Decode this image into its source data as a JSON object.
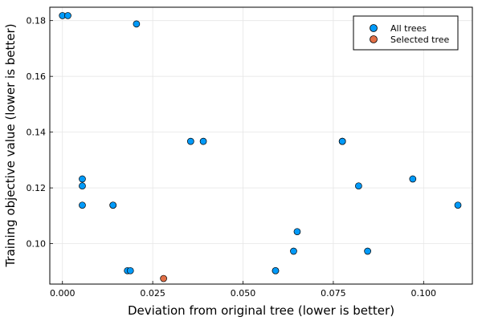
{
  "chart_data": {
    "type": "scatter",
    "title": "",
    "xlabel": "Deviation from original tree (lower is better)",
    "ylabel": "Training objective value (lower is better)",
    "xlim": [
      -0.0035,
      0.1135
    ],
    "ylim": [
      0.0855,
      0.1848
    ],
    "x_ticks": [
      0.0,
      0.025,
      0.05,
      0.075,
      0.1
    ],
    "x_tick_labels": [
      "0.000",
      "0.025",
      "0.050",
      "0.075",
      "0.100"
    ],
    "y_ticks": [
      0.1,
      0.12,
      0.14,
      0.16,
      0.18
    ],
    "y_tick_labels": [
      "0.10",
      "0.12",
      "0.14",
      "0.16",
      "0.18"
    ],
    "grid": true,
    "legend_position": "top-right",
    "series": [
      {
        "name": "All trees",
        "color": "#009AF9",
        "points": [
          [
            0.0,
            0.1818
          ],
          [
            0.0015,
            0.1818
          ],
          [
            0.0205,
            0.1788
          ],
          [
            0.0355,
            0.1367
          ],
          [
            0.039,
            0.1367
          ],
          [
            0.0055,
            0.1232
          ],
          [
            0.0055,
            0.1207
          ],
          [
            0.0055,
            0.1138
          ],
          [
            0.014,
            0.1138
          ],
          [
            0.014,
            0.1138
          ],
          [
            0.018,
            0.0903
          ],
          [
            0.0188,
            0.0903
          ],
          [
            0.059,
            0.0903
          ],
          [
            0.059,
            0.0903
          ],
          [
            0.064,
            0.0973
          ],
          [
            0.065,
            0.1043
          ],
          [
            0.0775,
            0.1367
          ],
          [
            0.0775,
            0.1367
          ],
          [
            0.082,
            0.1207
          ],
          [
            0.0845,
            0.0973
          ],
          [
            0.097,
            0.1232
          ],
          [
            0.1095,
            0.1138
          ]
        ]
      },
      {
        "name": "Selected tree",
        "color": "#E26F46",
        "points": [
          [
            0.028,
            0.0875
          ]
        ]
      }
    ]
  }
}
